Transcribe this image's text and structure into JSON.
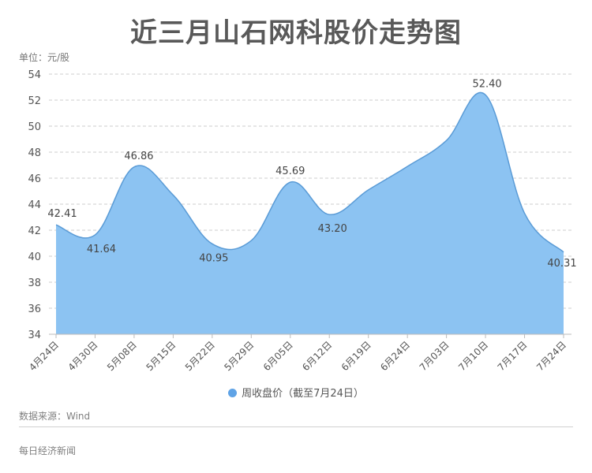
{
  "header": {
    "title": "近三月山石网科股价走势图",
    "unit": "单位：元/股"
  },
  "legend": {
    "label": "周收盘价（截至7月24日）",
    "color": "#5fa3e6"
  },
  "footer": {
    "source": "数据来源：Wind",
    "brand": "每日经济新闻"
  },
  "colors": {
    "fill": "#8cc3f2",
    "line": "#5a9bd6",
    "grid": "#cccccc",
    "axis": "#bbbbbb"
  },
  "chart_data": {
    "type": "area",
    "title": "近三月山石网科股价走势图",
    "xlabel": "",
    "ylabel": "单位：元/股",
    "categories": [
      "4月24日",
      "4月30日",
      "5月08日",
      "5月15日",
      "5月22日",
      "5月29日",
      "6月05日",
      "6月12日",
      "6月19日",
      "6月24日",
      "7月03日",
      "7月10日",
      "7月17日",
      "7月24日"
    ],
    "series": [
      {
        "name": "周收盘价（截至7月24日）",
        "values": [
          42.41,
          41.64,
          46.86,
          44.7,
          40.95,
          41.2,
          45.69,
          43.2,
          45.1,
          46.9,
          48.9,
          52.4,
          43.3,
          40.31
        ]
      }
    ],
    "data_labels": [
      {
        "index": 0,
        "text": "42.41"
      },
      {
        "index": 1,
        "text": "41.64"
      },
      {
        "index": 2,
        "text": "46.86"
      },
      {
        "index": 4,
        "text": "40.95"
      },
      {
        "index": 6,
        "text": "45.69"
      },
      {
        "index": 7,
        "text": "43.20"
      },
      {
        "index": 11,
        "text": "52.40"
      },
      {
        "index": 13,
        "text": "40.31"
      }
    ],
    "ylim": [
      34,
      54
    ],
    "yticks": [
      34,
      36,
      38,
      40,
      42,
      44,
      46,
      48,
      50,
      52,
      54
    ],
    "grid": true,
    "smooth": true,
    "legend_position": "bottom"
  }
}
